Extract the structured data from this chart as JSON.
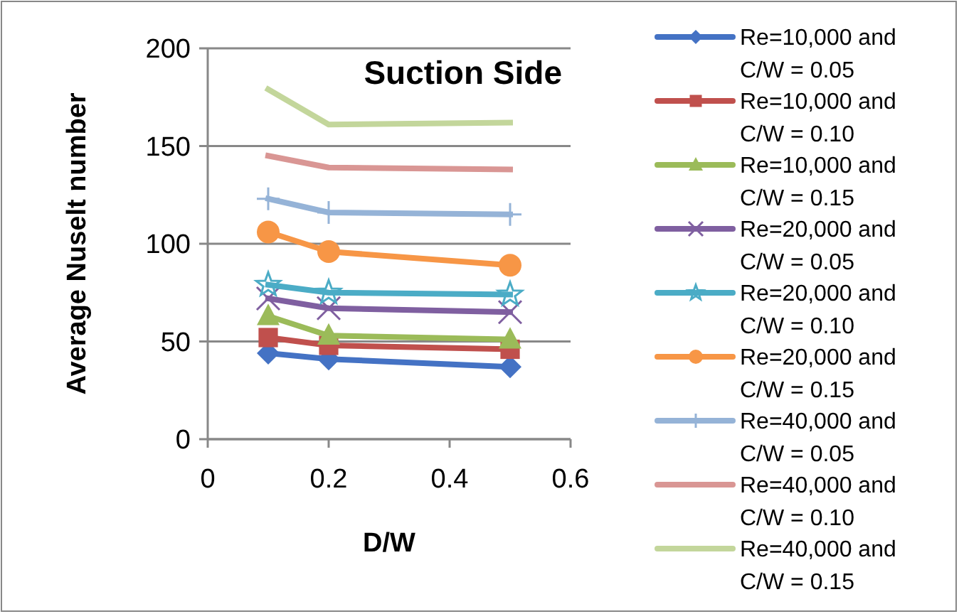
{
  "chart_data": {
    "type": "line",
    "annotations": [
      "Suction Side"
    ],
    "xlabel": "D/W",
    "ylabel": "Average Nuselt number",
    "x": [
      0.1,
      0.2,
      0.5
    ],
    "xlim": [
      0,
      0.6
    ],
    "xticks": [
      0,
      0.2,
      0.4,
      0.6
    ],
    "ylim": [
      0,
      200
    ],
    "yticks": [
      0,
      50,
      100,
      150,
      200
    ],
    "grid": "y",
    "legend": "right",
    "series": [
      {
        "name": "Re=10,000 and C/W = 0.05",
        "color": "#4472c4",
        "marker": "diamond",
        "values": [
          44,
          41,
          37
        ]
      },
      {
        "name": "Re=10,000 and C/W = 0.10",
        "color": "#c0504d",
        "marker": "square",
        "values": [
          52,
          48,
          46
        ]
      },
      {
        "name": "Re=10,000 and C/W = 0.15",
        "color": "#9bbb59",
        "marker": "triangle",
        "values": [
          63,
          53,
          51
        ]
      },
      {
        "name": "Re=20,000 and C/W = 0.05",
        "color": "#7f5fa0",
        "marker": "cross",
        "values": [
          72,
          67,
          65
        ]
      },
      {
        "name": "Re=20,000 and C/W = 0.10",
        "color": "#4bacc6",
        "marker": "star",
        "values": [
          79,
          75,
          74
        ]
      },
      {
        "name": "Re=20,000 and C/W = 0.15",
        "color": "#f79646",
        "marker": "circle",
        "values": [
          106,
          96,
          89
        ]
      },
      {
        "name": "Re=40,000 and C/W = 0.05",
        "color": "#95b3d7",
        "marker": "plus",
        "values": [
          123,
          116,
          115
        ]
      },
      {
        "name": "Re=40,000 and C/W = 0.10",
        "color": "#d99694",
        "marker": "none",
        "values": [
          145,
          139,
          138
        ]
      },
      {
        "name": "Re=40,000 and C/W = 0.15",
        "color": "#c3d69b",
        "marker": "none",
        "values": [
          179,
          161,
          162
        ]
      }
    ]
  }
}
